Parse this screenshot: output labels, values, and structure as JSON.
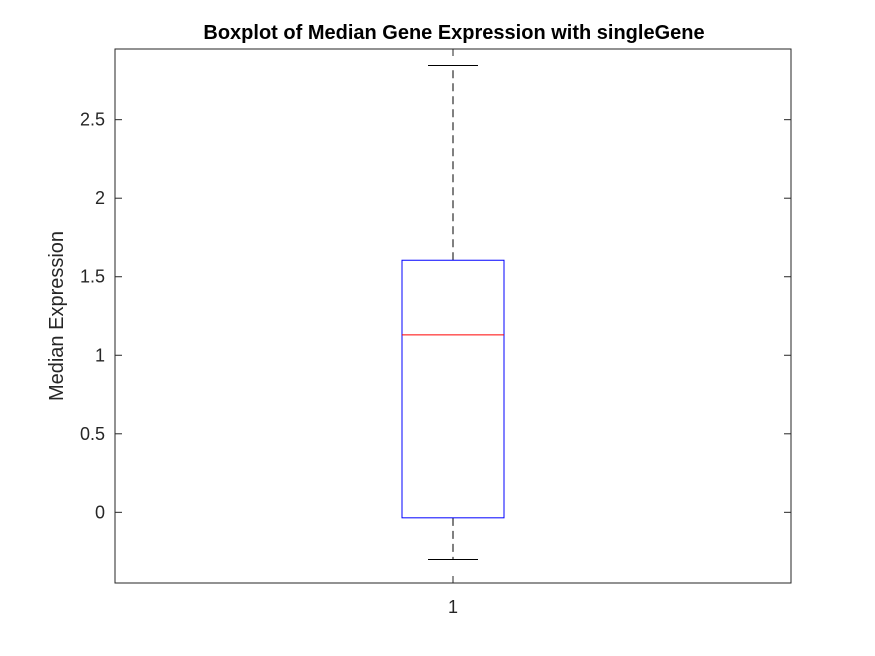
{
  "chart_data": {
    "type": "boxplot",
    "title": "Boxplot of Median Gene Expression with singleGene",
    "xlabel": "",
    "ylabel": "Median Expression",
    "categories": [
      "1"
    ],
    "ylim": [
      -0.45,
      2.95
    ],
    "yticks": [
      0,
      0.5,
      1,
      1.5,
      2,
      2.5
    ],
    "ytick_labels": [
      "0",
      "0.5",
      "1",
      "1.5",
      "2",
      "2.5"
    ],
    "grid": false,
    "boxes": [
      {
        "category": "1",
        "whisker_low": -0.3,
        "q1": -0.035,
        "median": 1.13,
        "q3": 1.605,
        "whisker_high": 2.845
      }
    ],
    "colors": {
      "box": "#0000ff",
      "median": "#ff0000",
      "whisker": "#000000",
      "axes": "#262626"
    }
  }
}
